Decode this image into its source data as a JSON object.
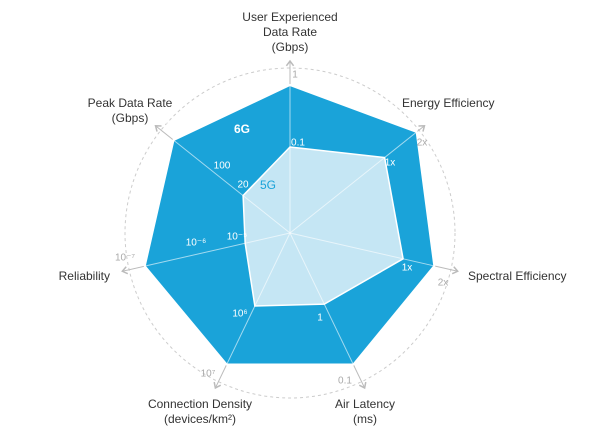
{
  "series": [
    "6G",
    "5G"
  ],
  "axes": [
    {
      "label": [
        "User Experienced",
        "Data Rate",
        "(Gbps)"
      ],
      "6G": "1",
      "5G": "0.1"
    },
    {
      "label": [
        "Energy Efficiency"
      ],
      "6G": "2x",
      "5G": "1x"
    },
    {
      "label": [
        "Spectral Efficiency"
      ],
      "6G": "2x",
      "5G": "1x"
    },
    {
      "label": [
        "Air Latency",
        "(ms)"
      ],
      "6G": "0.1",
      "5G": "1"
    },
    {
      "label": [
        "Connection Density",
        "(devices/km²)"
      ],
      "6G": "10⁷",
      "5G": "10⁶"
    },
    {
      "label": [
        "Reliability"
      ],
      "6G": "10⁻⁷",
      "5G": "10⁻⁵",
      "mid": "10⁻⁶"
    },
    {
      "label": [
        "Peak Data Rate",
        "(Gbps)"
      ],
      "6G": "1,000",
      "5G": "20",
      "mid": "100"
    }
  ]
}
